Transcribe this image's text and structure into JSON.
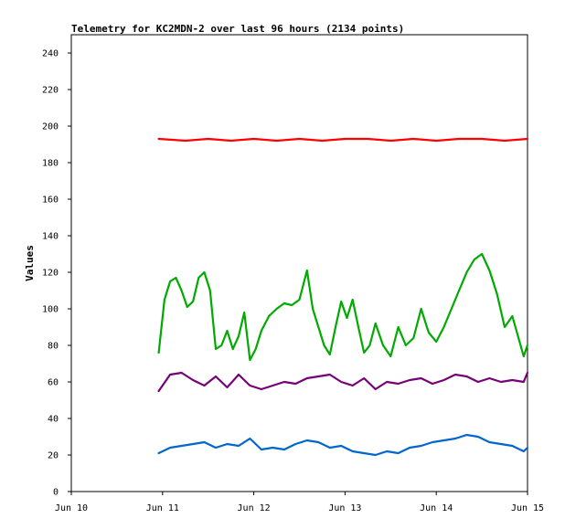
{
  "chart_data": {
    "type": "line",
    "title": "Telemetry for KC2MDN-2 over last 96 hours (2134 points)",
    "xlabel": "",
    "ylabel": "Values",
    "xlim": [
      "Jun 10",
      "Jun 15"
    ],
    "ylim": [
      0,
      250
    ],
    "x_ticks": [
      "Jun 10",
      "Jun 11",
      "Jun 12",
      "Jun 13",
      "Jun 14",
      "Jun 15"
    ],
    "y_ticks": [
      0,
      20,
      40,
      60,
      80,
      100,
      120,
      140,
      160,
      180,
      200,
      220,
      240
    ],
    "grid": false,
    "legend": "none",
    "series": [
      {
        "color": "#ff0000",
        "x": [
          "Jun 10 23:00",
          "Jun 11 06:00",
          "Jun 11 12:00",
          "Jun 11 18:00",
          "Jun 12 00:00",
          "Jun 12 06:00",
          "Jun 12 12:00",
          "Jun 12 18:00",
          "Jun 13 00:00",
          "Jun 13 06:00",
          "Jun 13 12:00",
          "Jun 13 18:00",
          "Jun 14 00:00",
          "Jun 14 06:00",
          "Jun 14 12:00",
          "Jun 14 18:00",
          "Jun 14 23:59"
        ],
        "values": [
          193,
          192,
          193,
          192,
          193,
          192,
          193,
          192,
          193,
          193,
          192,
          193,
          192,
          193,
          193,
          192,
          193
        ]
      },
      {
        "color": "#00aa00",
        "x": [
          "Jun 10 23:00",
          "Jun 11 00:30",
          "Jun 11 02:00",
          "Jun 11 03:30",
          "Jun 11 05:00",
          "Jun 11 06:30",
          "Jun 11 08:00",
          "Jun 11 09:30",
          "Jun 11 11:00",
          "Jun 11 12:30",
          "Jun 11 14:00",
          "Jun 11 15:30",
          "Jun 11 17:00",
          "Jun 11 18:30",
          "Jun 11 20:00",
          "Jun 11 21:30",
          "Jun 11 23:00",
          "Jun 12 00:30",
          "Jun 12 02:00",
          "Jun 12 04:00",
          "Jun 12 06:00",
          "Jun 12 08:00",
          "Jun 12 10:00",
          "Jun 12 12:00",
          "Jun 12 14:00",
          "Jun 12 15:30",
          "Jun 12 17:00",
          "Jun 12 18:30",
          "Jun 12 20:00",
          "Jun 12 21:30",
          "Jun 12 23:00",
          "Jun 13 00:30",
          "Jun 13 02:00",
          "Jun 13 03:30",
          "Jun 13 05:00",
          "Jun 13 06:30",
          "Jun 13 08:00",
          "Jun 13 10:00",
          "Jun 13 12:00",
          "Jun 13 14:00",
          "Jun 13 16:00",
          "Jun 13 18:00",
          "Jun 13 20:00",
          "Jun 13 22:00",
          "Jun 14 00:00",
          "Jun 14 02:00",
          "Jun 14 04:00",
          "Jun 14 06:00",
          "Jun 14 08:00",
          "Jun 14 10:00",
          "Jun 14 12:00",
          "Jun 14 14:00",
          "Jun 14 16:00",
          "Jun 14 18:00",
          "Jun 14 20:00",
          "Jun 14 21:30",
          "Jun 14 23:00",
          "Jun 14 23:59"
        ],
        "values": [
          76,
          105,
          115,
          117,
          110,
          101,
          104,
          117,
          120,
          110,
          78,
          80,
          88,
          78,
          85,
          98,
          72,
          78,
          88,
          96,
          100,
          103,
          102,
          105,
          121,
          100,
          90,
          80,
          75,
          90,
          104,
          95,
          105,
          90,
          76,
          80,
          92,
          80,
          74,
          90,
          80,
          84,
          100,
          87,
          82,
          90,
          100,
          110,
          120,
          127,
          130,
          121,
          108,
          90,
          96,
          85,
          74,
          80
        ]
      },
      {
        "color": "#770077",
        "x": [
          "Jun 10 23:00",
          "Jun 11 02:00",
          "Jun 11 05:00",
          "Jun 11 08:00",
          "Jun 11 11:00",
          "Jun 11 14:00",
          "Jun 11 17:00",
          "Jun 11 20:00",
          "Jun 11 23:00",
          "Jun 12 02:00",
          "Jun 12 05:00",
          "Jun 12 08:00",
          "Jun 12 11:00",
          "Jun 12 14:00",
          "Jun 12 17:00",
          "Jun 12 20:00",
          "Jun 12 23:00",
          "Jun 13 02:00",
          "Jun 13 05:00",
          "Jun 13 08:00",
          "Jun 13 11:00",
          "Jun 13 14:00",
          "Jun 13 17:00",
          "Jun 13 20:00",
          "Jun 13 23:00",
          "Jun 14 02:00",
          "Jun 14 05:00",
          "Jun 14 08:00",
          "Jun 14 11:00",
          "Jun 14 14:00",
          "Jun 14 17:00",
          "Jun 14 20:00",
          "Jun 14 23:00",
          "Jun 14 23:59"
        ],
        "values": [
          55,
          64,
          65,
          61,
          58,
          63,
          57,
          64,
          58,
          56,
          58,
          60,
          59,
          62,
          63,
          64,
          60,
          58,
          62,
          56,
          60,
          59,
          61,
          62,
          59,
          61,
          64,
          63,
          60,
          62,
          60,
          61,
          60,
          65
        ]
      },
      {
        "color": "#0066cc",
        "x": [
          "Jun 10 23:00",
          "Jun 11 02:00",
          "Jun 11 05:00",
          "Jun 11 08:00",
          "Jun 11 11:00",
          "Jun 11 14:00",
          "Jun 11 17:00",
          "Jun 11 20:00",
          "Jun 11 23:00",
          "Jun 12 02:00",
          "Jun 12 05:00",
          "Jun 12 08:00",
          "Jun 12 11:00",
          "Jun 12 14:00",
          "Jun 12 17:00",
          "Jun 12 20:00",
          "Jun 12 23:00",
          "Jun 13 02:00",
          "Jun 13 05:00",
          "Jun 13 08:00",
          "Jun 13 11:00",
          "Jun 13 14:00",
          "Jun 13 17:00",
          "Jun 13 20:00",
          "Jun 13 23:00",
          "Jun 14 02:00",
          "Jun 14 05:00",
          "Jun 14 08:00",
          "Jun 14 11:00",
          "Jun 14 14:00",
          "Jun 14 17:00",
          "Jun 14 20:00",
          "Jun 14 23:00",
          "Jun 14 23:59"
        ],
        "values": [
          21,
          24,
          25,
          26,
          27,
          24,
          26,
          25,
          29,
          23,
          24,
          23,
          26,
          28,
          27,
          24,
          25,
          22,
          21,
          20,
          22,
          21,
          24,
          25,
          27,
          28,
          29,
          31,
          30,
          27,
          26,
          25,
          22,
          24
        ]
      }
    ]
  }
}
